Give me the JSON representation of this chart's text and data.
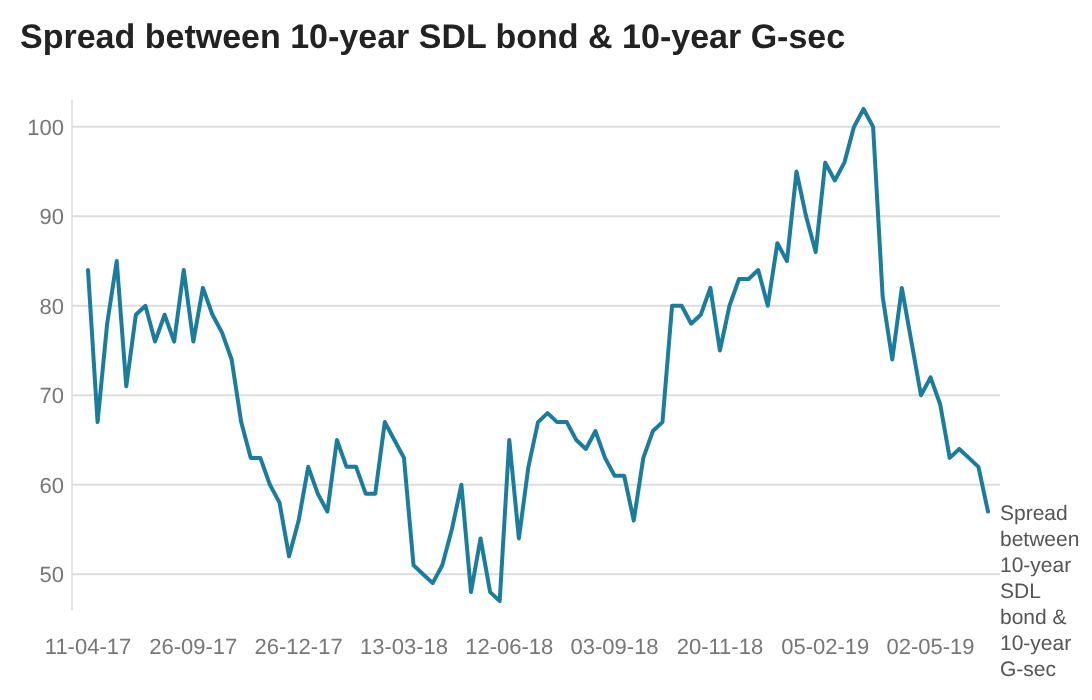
{
  "chart_data": {
    "type": "line",
    "title": "Spread between 10-year SDL bond & 10-year G-sec",
    "categories": [
      "11-04-17",
      null,
      null,
      null,
      null,
      null,
      null,
      null,
      null,
      null,
      null,
      "26-09-17",
      null,
      null,
      null,
      null,
      null,
      null,
      null,
      null,
      null,
      null,
      "26-12-17",
      null,
      null,
      null,
      null,
      null,
      null,
      null,
      null,
      null,
      null,
      "13-03-18",
      null,
      null,
      null,
      null,
      null,
      null,
      null,
      null,
      null,
      null,
      "12-06-18",
      null,
      null,
      null,
      null,
      null,
      null,
      null,
      null,
      null,
      null,
      "03-09-18",
      null,
      null,
      null,
      null,
      null,
      null,
      null,
      null,
      null,
      null,
      "20-11-18",
      null,
      null,
      null,
      null,
      null,
      null,
      null,
      null,
      null,
      null,
      "05-02-19",
      null,
      null,
      null,
      null,
      null,
      null,
      null,
      null,
      null,
      null,
      "02-05-19",
      null,
      null,
      null,
      null,
      null,
      null
    ],
    "series": [
      {
        "name": "Spread between 10-year SDL bond & 10-year G-sec",
        "color": "#1b7c9c",
        "values": [
          84,
          67,
          78,
          85,
          71,
          79,
          80,
          76,
          79,
          76,
          84,
          76,
          82,
          79,
          77,
          74,
          67,
          63,
          63,
          60,
          58,
          52,
          56,
          62,
          59,
          57,
          65,
          62,
          62,
          59,
          59,
          67,
          65,
          63,
          51,
          50,
          49,
          51,
          55,
          60,
          48,
          54,
          48,
          47,
          65,
          54,
          62,
          67,
          68,
          67,
          67,
          65,
          64,
          66,
          63,
          61,
          61,
          56,
          63,
          66,
          67,
          80,
          80,
          78,
          79,
          82,
          75,
          80,
          83,
          83,
          84,
          80,
          87,
          85,
          95,
          90,
          86,
          96,
          94,
          96,
          100,
          102,
          100,
          81,
          74,
          82,
          76,
          70,
          72,
          69,
          63,
          64,
          63,
          62,
          57
        ]
      }
    ],
    "ylim": [
      46,
      103
    ],
    "yticks": [
      50,
      60,
      70,
      80,
      90,
      100
    ],
    "grid": "y",
    "legend": false,
    "marker": "none",
    "line_style": "solid"
  }
}
